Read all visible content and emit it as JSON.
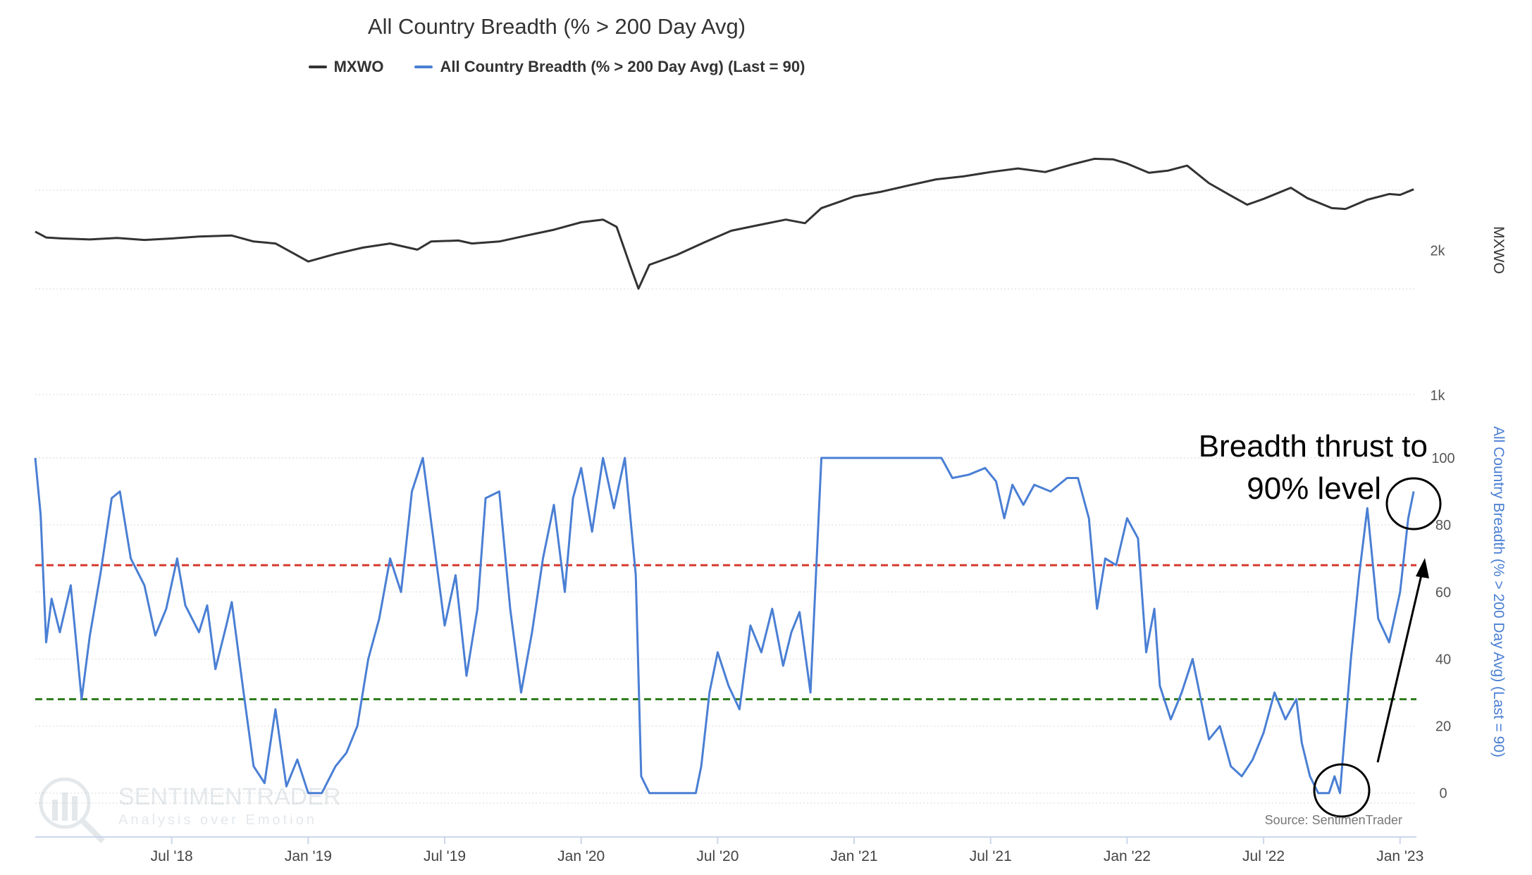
{
  "chart_data": {
    "type": "line",
    "title": "All Country Breadth (% > 200 Day Avg)",
    "legend": {
      "placement": "top-center",
      "entries": [
        {
          "name": "MXWO",
          "color": "#333333"
        },
        {
          "name": "All Country Breadth (% > 200 Day Avg) (Last = 90)",
          "color": "#4a7fd4"
        }
      ]
    },
    "x_ticks": [
      "Jul '18",
      "Jan '19",
      "Jul '19",
      "Jan '20",
      "Jul '20",
      "Jan '21",
      "Jul '21",
      "Jan '22",
      "Jul '22",
      "Jan '23"
    ],
    "x_range": [
      2018.0,
      2023.06
    ],
    "upper_axis": {
      "title": "MXWO",
      "tick_labels": [
        "1k",
        "2k"
      ],
      "tick_values": [
        1000,
        2000
      ],
      "range": [
        1000,
        3200
      ],
      "scale": "log"
    },
    "lower_axis": {
      "title": "All Country Breadth (% > 200 Day Avg) (Last = 90)",
      "tick_labels": [
        "0",
        "20",
        "40",
        "60",
        "80",
        "100"
      ],
      "tick_values": [
        0,
        20,
        40,
        60,
        80,
        100
      ],
      "range": [
        -3,
        100
      ]
    },
    "reference_lines": [
      {
        "value": 68,
        "color": "#d63a2f",
        "style": "dashed"
      },
      {
        "value": 28,
        "color": "#2f7d1e",
        "style": "dashed"
      }
    ],
    "series": [
      {
        "name": "MXWO",
        "color": "#333333",
        "axis": "upper",
        "points": [
          [
            2018.0,
            2180
          ],
          [
            2018.04,
            2120
          ],
          [
            2018.1,
            2110
          ],
          [
            2018.2,
            2100
          ],
          [
            2018.3,
            2115
          ],
          [
            2018.4,
            2095
          ],
          [
            2018.5,
            2110
          ],
          [
            2018.6,
            2130
          ],
          [
            2018.72,
            2140
          ],
          [
            2018.8,
            2080
          ],
          [
            2018.88,
            2060
          ],
          [
            2018.95,
            1960
          ],
          [
            2019.0,
            1890
          ],
          [
            2019.1,
            1960
          ],
          [
            2019.2,
            2020
          ],
          [
            2019.3,
            2060
          ],
          [
            2019.4,
            2000
          ],
          [
            2019.45,
            2080
          ],
          [
            2019.55,
            2090
          ],
          [
            2019.6,
            2060
          ],
          [
            2019.7,
            2080
          ],
          [
            2019.8,
            2140
          ],
          [
            2019.9,
            2200
          ],
          [
            2020.0,
            2280
          ],
          [
            2020.08,
            2310
          ],
          [
            2020.13,
            2230
          ],
          [
            2020.18,
            1850
          ],
          [
            2020.21,
            1660
          ],
          [
            2020.25,
            1860
          ],
          [
            2020.35,
            1950
          ],
          [
            2020.45,
            2070
          ],
          [
            2020.55,
            2190
          ],
          [
            2020.65,
            2250
          ],
          [
            2020.75,
            2310
          ],
          [
            2020.82,
            2270
          ],
          [
            2020.88,
            2440
          ],
          [
            2020.95,
            2520
          ],
          [
            2021.0,
            2580
          ],
          [
            2021.1,
            2640
          ],
          [
            2021.2,
            2720
          ],
          [
            2021.3,
            2800
          ],
          [
            2021.4,
            2840
          ],
          [
            2021.5,
            2900
          ],
          [
            2021.6,
            2950
          ],
          [
            2021.7,
            2900
          ],
          [
            2021.8,
            3010
          ],
          [
            2021.88,
            3090
          ],
          [
            2021.95,
            3080
          ],
          [
            2022.0,
            3020
          ],
          [
            2022.08,
            2890
          ],
          [
            2022.15,
            2920
          ],
          [
            2022.22,
            2990
          ],
          [
            2022.3,
            2750
          ],
          [
            2022.38,
            2590
          ],
          [
            2022.44,
            2480
          ],
          [
            2022.5,
            2550
          ],
          [
            2022.6,
            2690
          ],
          [
            2022.66,
            2560
          ],
          [
            2022.75,
            2440
          ],
          [
            2022.8,
            2430
          ],
          [
            2022.88,
            2540
          ],
          [
            2022.96,
            2610
          ],
          [
            2023.0,
            2600
          ],
          [
            2023.05,
            2670
          ]
        ]
      },
      {
        "name": "All Country Breadth (% > 200 Day Avg)",
        "color": "#4a7fd4",
        "axis": "lower",
        "points": [
          [
            2018.0,
            100
          ],
          [
            2018.02,
            83
          ],
          [
            2018.04,
            45
          ],
          [
            2018.06,
            58
          ],
          [
            2018.09,
            48
          ],
          [
            2018.13,
            62
          ],
          [
            2018.17,
            28
          ],
          [
            2018.2,
            47
          ],
          [
            2018.24,
            66
          ],
          [
            2018.28,
            88
          ],
          [
            2018.31,
            90
          ],
          [
            2018.35,
            70
          ],
          [
            2018.4,
            62
          ],
          [
            2018.44,
            47
          ],
          [
            2018.48,
            55
          ],
          [
            2018.52,
            70
          ],
          [
            2018.55,
            56
          ],
          [
            2018.6,
            48
          ],
          [
            2018.63,
            56
          ],
          [
            2018.66,
            37
          ],
          [
            2018.7,
            50
          ],
          [
            2018.72,
            57
          ],
          [
            2018.76,
            32
          ],
          [
            2018.8,
            8
          ],
          [
            2018.84,
            3
          ],
          [
            2018.88,
            25
          ],
          [
            2018.92,
            2
          ],
          [
            2018.96,
            10
          ],
          [
            2019.0,
            0
          ],
          [
            2019.05,
            0
          ],
          [
            2019.1,
            8
          ],
          [
            2019.14,
            12
          ],
          [
            2019.18,
            20
          ],
          [
            2019.22,
            40
          ],
          [
            2019.26,
            52
          ],
          [
            2019.3,
            70
          ],
          [
            2019.34,
            60
          ],
          [
            2019.38,
            90
          ],
          [
            2019.42,
            100
          ],
          [
            2019.46,
            75
          ],
          [
            2019.5,
            50
          ],
          [
            2019.54,
            65
          ],
          [
            2019.58,
            35
          ],
          [
            2019.62,
            55
          ],
          [
            2019.65,
            88
          ],
          [
            2019.7,
            90
          ],
          [
            2019.74,
            55
          ],
          [
            2019.78,
            30
          ],
          [
            2019.82,
            48
          ],
          [
            2019.86,
            70
          ],
          [
            2019.9,
            86
          ],
          [
            2019.94,
            60
          ],
          [
            2019.97,
            88
          ],
          [
            2020.0,
            97
          ],
          [
            2020.04,
            78
          ],
          [
            2020.08,
            100
          ],
          [
            2020.12,
            85
          ],
          [
            2020.16,
            100
          ],
          [
            2020.2,
            65
          ],
          [
            2020.22,
            5
          ],
          [
            2020.25,
            0
          ],
          [
            2020.3,
            0
          ],
          [
            2020.35,
            0
          ],
          [
            2020.42,
            0
          ],
          [
            2020.44,
            8
          ],
          [
            2020.47,
            30
          ],
          [
            2020.5,
            42
          ],
          [
            2020.54,
            32
          ],
          [
            2020.58,
            25
          ],
          [
            2020.62,
            50
          ],
          [
            2020.66,
            42
          ],
          [
            2020.7,
            55
          ],
          [
            2020.74,
            38
          ],
          [
            2020.77,
            48
          ],
          [
            2020.8,
            54
          ],
          [
            2020.84,
            30
          ],
          [
            2020.88,
            100
          ],
          [
            2020.95,
            100
          ],
          [
            2021.05,
            100
          ],
          [
            2021.2,
            100
          ],
          [
            2021.32,
            100
          ],
          [
            2021.36,
            94
          ],
          [
            2021.42,
            95
          ],
          [
            2021.48,
            97
          ],
          [
            2021.52,
            93
          ],
          [
            2021.55,
            82
          ],
          [
            2021.58,
            92
          ],
          [
            2021.62,
            86
          ],
          [
            2021.66,
            92
          ],
          [
            2021.72,
            90
          ],
          [
            2021.78,
            94
          ],
          [
            2021.82,
            94
          ],
          [
            2021.86,
            82
          ],
          [
            2021.89,
            55
          ],
          [
            2021.92,
            70
          ],
          [
            2021.96,
            68
          ],
          [
            2022.0,
            82
          ],
          [
            2022.04,
            76
          ],
          [
            2022.07,
            42
          ],
          [
            2022.1,
            55
          ],
          [
            2022.12,
            32
          ],
          [
            2022.16,
            22
          ],
          [
            2022.2,
            30
          ],
          [
            2022.24,
            40
          ],
          [
            2022.27,
            28
          ],
          [
            2022.3,
            16
          ],
          [
            2022.34,
            20
          ],
          [
            2022.38,
            8
          ],
          [
            2022.42,
            5
          ],
          [
            2022.46,
            10
          ],
          [
            2022.5,
            18
          ],
          [
            2022.54,
            30
          ],
          [
            2022.58,
            22
          ],
          [
            2022.62,
            28
          ],
          [
            2022.64,
            15
          ],
          [
            2022.67,
            5
          ],
          [
            2022.7,
            0
          ],
          [
            2022.74,
            0
          ],
          [
            2022.76,
            5
          ],
          [
            2022.78,
            0
          ],
          [
            2022.82,
            40
          ],
          [
            2022.85,
            65
          ],
          [
            2022.88,
            85
          ],
          [
            2022.92,
            52
          ],
          [
            2022.96,
            45
          ],
          [
            2023.0,
            60
          ],
          [
            2023.03,
            82
          ],
          [
            2023.05,
            90
          ]
        ]
      }
    ],
    "annotations": [
      {
        "text": "Breadth thrust to",
        "kind": "text"
      },
      {
        "text": "90% level",
        "kind": "text"
      }
    ]
  },
  "source": "Source: SentimenTrader",
  "watermark": {
    "brand": "SENTIMENTRADER",
    "tagline": "Analysis over Emotion"
  }
}
